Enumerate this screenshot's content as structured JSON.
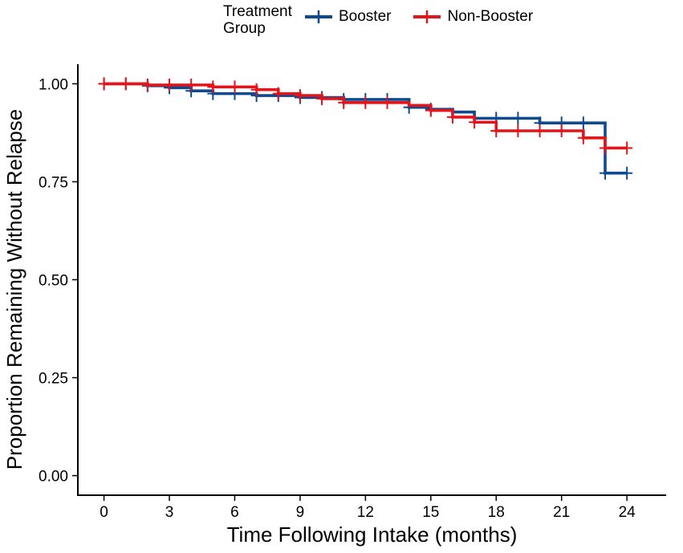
{
  "chart_data": {
    "type": "line",
    "subtype": "kaplan-meier step",
    "title": "",
    "xlabel": "Time Following Intake (months)",
    "ylabel": "Proportion Remaining Without Relapse",
    "xlim": [
      -1.2,
      25.8
    ],
    "ylim": [
      -0.05,
      1.05
    ],
    "x_ticks": [
      0,
      3,
      6,
      9,
      12,
      15,
      18,
      21,
      24
    ],
    "y_ticks": [
      0.0,
      0.25,
      0.5,
      0.75,
      1.0
    ],
    "y_tick_labels": [
      "0.00",
      "0.25",
      "0.50",
      "0.75",
      "1.00"
    ],
    "legend": {
      "title_line1": "Treatment",
      "title_line2": "Group",
      "placement": "top"
    },
    "series": [
      {
        "name": "Booster",
        "color": "#0d4a8f",
        "steps": [
          [
            0,
            1.0
          ],
          [
            2,
            0.995
          ],
          [
            3,
            0.99
          ],
          [
            4,
            0.982
          ],
          [
            5,
            0.975
          ],
          [
            7,
            0.97
          ],
          [
            9,
            0.965
          ],
          [
            11,
            0.96
          ],
          [
            14,
            0.94
          ],
          [
            15,
            0.935
          ],
          [
            16,
            0.928
          ],
          [
            17,
            0.912
          ],
          [
            20,
            0.9
          ],
          [
            23,
            0.772
          ],
          [
            24,
            0.772
          ]
        ],
        "censor_times": [
          0,
          1,
          2,
          3,
          4,
          5,
          6,
          7,
          8,
          9,
          10,
          11,
          12,
          13,
          14,
          15,
          18,
          19,
          20,
          21,
          22,
          23,
          24
        ]
      },
      {
        "name": "Non-Booster",
        "color": "#e3141a",
        "steps": [
          [
            0,
            1.0
          ],
          [
            2,
            0.997
          ],
          [
            5,
            0.992
          ],
          [
            7,
            0.985
          ],
          [
            8,
            0.975
          ],
          [
            9,
            0.97
          ],
          [
            10,
            0.962
          ],
          [
            11,
            0.952
          ],
          [
            14,
            0.945
          ],
          [
            15,
            0.932
          ],
          [
            16,
            0.915
          ],
          [
            17,
            0.902
          ],
          [
            18,
            0.88
          ],
          [
            22,
            0.862
          ],
          [
            23,
            0.836
          ],
          [
            24,
            0.836
          ]
        ],
        "censor_times": [
          0,
          1,
          2,
          3,
          4,
          5,
          6,
          7,
          8,
          9,
          10,
          11,
          12,
          13,
          15,
          16,
          17,
          18,
          19,
          20,
          21,
          22,
          23,
          24
        ]
      }
    ]
  }
}
